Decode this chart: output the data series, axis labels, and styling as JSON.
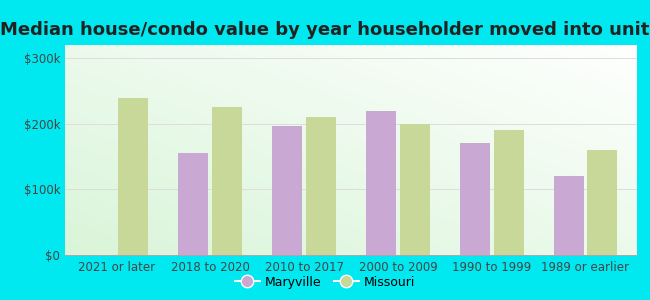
{
  "title": "Median house/condo value by year householder moved into unit",
  "categories": [
    "2021 or later",
    "2018 to 2020",
    "2010 to 2017",
    "2000 to 2009",
    "1990 to 1999",
    "1989 or earlier"
  ],
  "maryville_values": [
    null,
    155000,
    197000,
    220000,
    170000,
    120000
  ],
  "missouri_values": [
    240000,
    225000,
    210000,
    200000,
    190000,
    160000
  ],
  "maryville_color": "#c9a8d4",
  "missouri_color": "#c8d898",
  "outer_background": "#00e8f0",
  "bar_width": 0.32,
  "ylim": [
    0,
    320000
  ],
  "yticks": [
    0,
    100000,
    200000,
    300000
  ],
  "ytick_labels": [
    "$0",
    "$100k",
    "$200k",
    "$300k"
  ],
  "legend_maryville": "Maryville",
  "legend_missouri": "Missouri",
  "title_fontsize": 13,
  "tick_fontsize": 8.5,
  "legend_fontsize": 9,
  "tick_color": "#444444",
  "grid_color": "#dddddd",
  "title_color": "#222222"
}
